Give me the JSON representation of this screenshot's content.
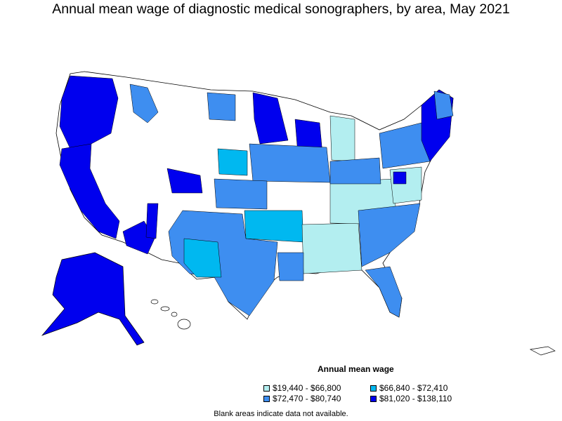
{
  "title": "Annual mean wage of diagnostic medical sonographers, by area, May 2021",
  "legend": {
    "title": "Annual mean wage",
    "items": [
      {
        "label": "$19,440 - $66,800",
        "color": "#b3eef0"
      },
      {
        "label": "$66,840 - $72,410",
        "color": "#00b8f0"
      },
      {
        "label": "$72,470 - $80,740",
        "color": "#3e8ef0"
      },
      {
        "label": "$81,020 - $138,110",
        "color": "#0000ee"
      }
    ]
  },
  "note": "Blank areas indicate data not available.",
  "colors": {
    "tier1": "#b3eef0",
    "tier2": "#00b8f0",
    "tier3": "#3e8ef0",
    "tier4": "#0000ee",
    "no_data": "#ffffff",
    "border": "#000000"
  }
}
